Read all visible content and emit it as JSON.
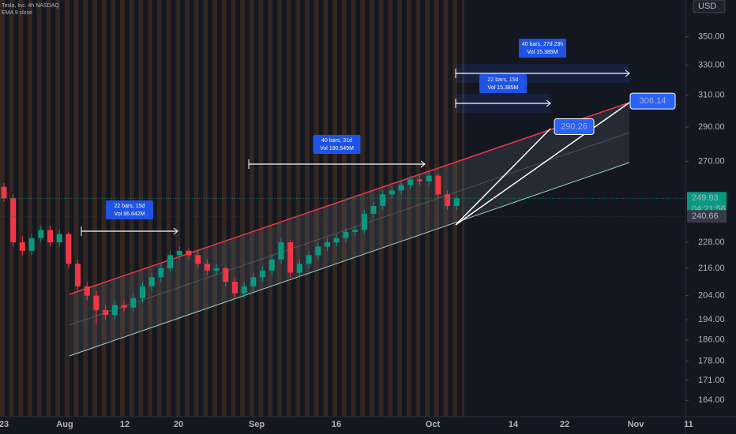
{
  "chart_data": {
    "type": "candlestick",
    "title": "Tesla, Inc. 4h NASDAQ",
    "indicator": "EMA 9 close",
    "currency": "USD",
    "log": true,
    "up_color": "#089981",
    "down_color": "#f23645",
    "ylim": [
      158.5,
      378
    ],
    "yticks": [
      {
        "value": 350,
        "label": "350.00"
      },
      {
        "value": 330,
        "label": "330.00"
      },
      {
        "value": 310,
        "label": "310.00"
      },
      {
        "value": 290,
        "label": "290.00"
      },
      {
        "value": 270,
        "label": "270.00"
      },
      {
        "value": 228,
        "label": "228.00"
      },
      {
        "value": 216,
        "label": "216.00"
      },
      {
        "value": 204,
        "label": "204.00"
      },
      {
        "value": 194,
        "label": "194.00"
      },
      {
        "value": 186,
        "label": "186.00"
      },
      {
        "value": 178,
        "label": "178.00"
      },
      {
        "value": 171,
        "label": "171.00"
      },
      {
        "value": 164,
        "label": "164.00"
      }
    ],
    "time_labels": [
      "23",
      "Aug",
      "12",
      "20",
      "Sep",
      "16",
      "Oct",
      "14",
      "22",
      "Nov",
      "11"
    ],
    "candles": [
      [
        256,
        258,
        248,
        250
      ],
      [
        250,
        252,
        226,
        228
      ],
      [
        228,
        231,
        222,
        224
      ],
      [
        224,
        232,
        222,
        230
      ],
      [
        230,
        236,
        228,
        234
      ],
      [
        234,
        236,
        226,
        228
      ],
      [
        228,
        234,
        226,
        232
      ],
      [
        232,
        233,
        216,
        218
      ],
      [
        218,
        220,
        206,
        208
      ],
      [
        208,
        210,
        202,
        204
      ],
      [
        204,
        206,
        192,
        198
      ],
      [
        198,
        200,
        194,
        196
      ],
      [
        196,
        202,
        194,
        200
      ],
      [
        200,
        202,
        197,
        199
      ],
      [
        199,
        205,
        197,
        203
      ],
      [
        203,
        210,
        201,
        208
      ],
      [
        208,
        214,
        206,
        212
      ],
      [
        212,
        218,
        210,
        216
      ],
      [
        216,
        224,
        214,
        222
      ],
      [
        222,
        226,
        220,
        224
      ],
      [
        224,
        225,
        220,
        222
      ],
      [
        222,
        224,
        216,
        218
      ],
      [
        218,
        220,
        213,
        215
      ],
      [
        215,
        218,
        213,
        216
      ],
      [
        216,
        217,
        208,
        210
      ],
      [
        210,
        212,
        203,
        205
      ],
      [
        205,
        210,
        203,
        208
      ],
      [
        208,
        214,
        206,
        212
      ],
      [
        212,
        217,
        210,
        215
      ],
      [
        215,
        222,
        213,
        220
      ],
      [
        220,
        230,
        218,
        228
      ],
      [
        228,
        229,
        212,
        214
      ],
      [
        214,
        220,
        212,
        218
      ],
      [
        218,
        224,
        216,
        222
      ],
      [
        222,
        228,
        220,
        226
      ],
      [
        226,
        230,
        224,
        228
      ],
      [
        228,
        232,
        226,
        230
      ],
      [
        230,
        235,
        228,
        233
      ],
      [
        233,
        236,
        231,
        234
      ],
      [
        234,
        244,
        232,
        242
      ],
      [
        242,
        248,
        240,
        246
      ],
      [
        246,
        254,
        244,
        252
      ],
      [
        252,
        256,
        250,
        254
      ],
      [
        254,
        259,
        252,
        257
      ],
      [
        257,
        262,
        255,
        260
      ],
      [
        260,
        262,
        257,
        259
      ],
      [
        259,
        264,
        257,
        262
      ],
      [
        262,
        263,
        250,
        252
      ],
      [
        252,
        254,
        244,
        246
      ],
      [
        246,
        251,
        244,
        249.93
      ]
    ],
    "markers": [
      {
        "value": 249.93,
        "label": "249.93",
        "color": "#089981"
      },
      {
        "value": 240.66,
        "label": "240.66",
        "color": "#363a45"
      }
    ],
    "countdown": "04:21:56",
    "targets": [
      {
        "value": 290.26,
        "label": "290.26"
      },
      {
        "value": 306.14,
        "label": "306.14"
      }
    ],
    "measures": [
      {
        "bars": "22 bars, 15d",
        "vol": "Vol 96.642M"
      },
      {
        "bars": "40 bars, 31d",
        "vol": "Vol 190.549M"
      },
      {
        "bars": "22 bars, 15d",
        "vol": "Vol 15.385M"
      },
      {
        "bars": "40 bars, 27d 23h",
        "vol": "Vol 15.385M"
      }
    ]
  }
}
